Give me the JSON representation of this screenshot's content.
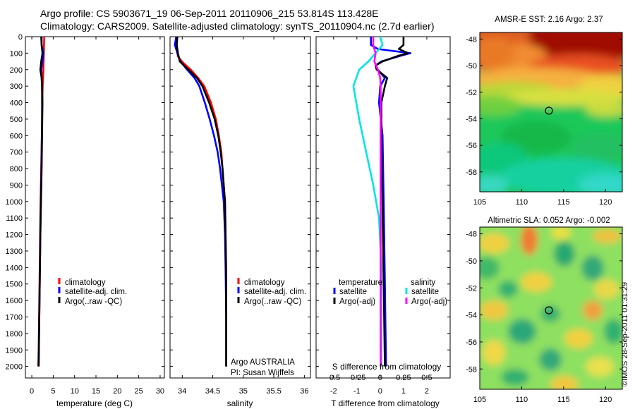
{
  "header": {
    "line1": "Argo profile: CS 5903671_19 06-Sep-2011 20110906_215 53.814S 113.428E",
    "line2": "Climatology: CARS2009. Satellite-adjusted climatology: synTS_20110904.nc (2.7d earlier)"
  },
  "colors": {
    "climatology": "#ff0000",
    "satellite": "#0000ff",
    "argo": "#000000",
    "salinity_satellite": "#00e5e5",
    "salinity_argo": "#ff00ff"
  },
  "chart_data": [
    {
      "type": "line",
      "xlabel": "temperature (deg C)",
      "ylabel": "",
      "xlim": [
        -1.5,
        31
      ],
      "ylim": [
        2070,
        0
      ],
      "xticks": [
        0,
        5,
        10,
        15,
        20,
        25,
        30
      ],
      "yticks": [
        0,
        100,
        200,
        300,
        400,
        500,
        600,
        700,
        800,
        900,
        1000,
        1100,
        1200,
        1300,
        1400,
        1500,
        1600,
        1700,
        1800,
        1900,
        2000
      ],
      "legend": [
        "climatology",
        "satellite-adj. clim.",
        "Argo(..raw -QC)"
      ],
      "series": [
        {
          "name": "climatology",
          "color": "#ff0000",
          "points": [
            [
              2.9,
              0
            ],
            [
              2.8,
              100
            ],
            [
              2.7,
              200
            ],
            [
              2.55,
              300
            ],
            [
              2.45,
              400
            ],
            [
              2.35,
              600
            ],
            [
              2.2,
              800
            ],
            [
              2.05,
              1000
            ],
            [
              1.9,
              1300
            ],
            [
              1.75,
              1600
            ],
            [
              1.6,
              1900
            ],
            [
              1.5,
              2000
            ]
          ]
        },
        {
          "name": "satellite-adj. clim.",
          "color": "#0000ff",
          "points": [
            [
              2.3,
              0
            ],
            [
              2.3,
              50
            ],
            [
              2.7,
              100
            ],
            [
              2.5,
              150
            ],
            [
              2.2,
              200
            ],
            [
              2.4,
              300
            ],
            [
              2.4,
              500
            ],
            [
              2.3,
              700
            ],
            [
              2.2,
              900
            ],
            [
              2.05,
              1100
            ],
            [
              1.9,
              1400
            ],
            [
              1.75,
              1700
            ],
            [
              1.6,
              2000
            ]
          ]
        },
        {
          "name": "Argo(..raw -QC)",
          "color": "#000000",
          "points": [
            [
              2.2,
              0
            ],
            [
              2.3,
              50
            ],
            [
              2.5,
              100
            ],
            [
              2.2,
              150
            ],
            [
              2.0,
              200
            ],
            [
              2.3,
              250
            ],
            [
              2.4,
              300
            ],
            [
              2.5,
              400
            ],
            [
              2.4,
              600
            ],
            [
              2.3,
              800
            ],
            [
              2.15,
              1000
            ],
            [
              2.0,
              1200
            ],
            [
              1.85,
              1500
            ],
            [
              1.7,
              1800
            ],
            [
              1.6,
              2000
            ]
          ]
        }
      ]
    },
    {
      "type": "line",
      "xlabel": "salinity",
      "xlim": [
        33.8,
        36.1
      ],
      "ylim": [
        2070,
        0
      ],
      "xticks": [
        34,
        34.5,
        35,
        35.5,
        36
      ],
      "legend": [
        "climatology",
        "satellite-adj. clim.",
        "Argo(..raw -QC)"
      ],
      "annotations": [
        "Argo AUSTRALIA",
        "PI: Susan Wijffels"
      ],
      "series": [
        {
          "name": "climatology",
          "color": "#ff0000",
          "points": [
            [
              33.9,
              0
            ],
            [
              33.91,
              60
            ],
            [
              33.93,
              120
            ],
            [
              34.02,
              160
            ],
            [
              34.14,
              200
            ],
            [
              34.26,
              250
            ],
            [
              34.36,
              300
            ],
            [
              34.47,
              400
            ],
            [
              34.55,
              500
            ],
            [
              34.6,
              600
            ],
            [
              34.64,
              700
            ],
            [
              34.66,
              800
            ],
            [
              34.68,
              900
            ],
            [
              34.7,
              1000
            ],
            [
              34.71,
              1200
            ],
            [
              34.72,
              1400
            ],
            [
              34.72,
              1600
            ],
            [
              34.72,
              2000
            ]
          ]
        },
        {
          "name": "satellite-adj. clim.",
          "color": "#0000ff",
          "points": [
            [
              33.9,
              0
            ],
            [
              33.88,
              50
            ],
            [
              33.92,
              100
            ],
            [
              33.97,
              150
            ],
            [
              34.08,
              200
            ],
            [
              34.2,
              250
            ],
            [
              34.28,
              300
            ],
            [
              34.37,
              400
            ],
            [
              34.45,
              500
            ],
            [
              34.52,
              600
            ],
            [
              34.58,
              700
            ],
            [
              34.62,
              800
            ],
            [
              34.65,
              900
            ],
            [
              34.68,
              1000
            ],
            [
              34.7,
              1200
            ],
            [
              34.71,
              1400
            ],
            [
              34.72,
              1700
            ],
            [
              34.72,
              2000
            ]
          ]
        },
        {
          "name": "Argo(..raw -QC)",
          "color": "#000000",
          "points": [
            [
              33.92,
              0
            ],
            [
              33.91,
              50
            ],
            [
              33.93,
              100
            ],
            [
              33.96,
              150
            ],
            [
              34.1,
              200
            ],
            [
              34.24,
              250
            ],
            [
              34.33,
              300
            ],
            [
              34.44,
              400
            ],
            [
              34.53,
              500
            ],
            [
              34.59,
              600
            ],
            [
              34.63,
              700
            ],
            [
              34.66,
              800
            ],
            [
              34.68,
              900
            ],
            [
              34.7,
              1000
            ],
            [
              34.71,
              1200
            ],
            [
              34.72,
              1500
            ],
            [
              34.72,
              1800
            ],
            [
              34.72,
              2000
            ]
          ]
        }
      ]
    },
    {
      "type": "line",
      "xlabel": "T difference from climatology",
      "xlabel_secondary": "S difference from climatology",
      "xlim": [
        -2.75,
        3
      ],
      "ylim": [
        2070,
        0
      ],
      "xticks": [
        -2,
        -1,
        0,
        1,
        2
      ],
      "secondary_xticks": [
        "-0.5",
        "-0.25",
        "0",
        "0.25",
        "0.5"
      ],
      "secondary_xtick_positions": [
        -2,
        -1,
        0,
        1,
        2
      ],
      "legend_titles": [
        "temperature",
        "salinity"
      ],
      "legend": [
        "satellite",
        "Argo(-adj)",
        "satellite",
        "Argo(-adj)"
      ],
      "series": [
        {
          "name": "temperature satellite",
          "color": "#0000ff",
          "points": [
            [
              -0.4,
              0
            ],
            [
              -0.4,
              50
            ],
            [
              -0.1,
              75
            ],
            [
              1.3,
              100
            ],
            [
              0.9,
              115
            ],
            [
              0.05,
              150
            ],
            [
              -0.2,
              175
            ],
            [
              -0.1,
              200
            ],
            [
              0.2,
              250
            ],
            [
              0,
              300
            ],
            [
              -0.05,
              400
            ],
            [
              0.1,
              600
            ],
            [
              0.15,
              1000
            ],
            [
              0.2,
              1500
            ],
            [
              0.25,
              2000
            ]
          ]
        },
        {
          "name": "temperature Argo(-adj)",
          "color": "#000000",
          "points": [
            [
              1.0,
              0
            ],
            [
              1.0,
              50
            ],
            [
              0.8,
              75
            ],
            [
              1.2,
              100
            ],
            [
              0.8,
              115
            ],
            [
              0.1,
              150
            ],
            [
              -0.2,
              175
            ],
            [
              -0.15,
              200
            ],
            [
              0.3,
              250
            ],
            [
              0.2,
              300
            ],
            [
              0.05,
              400
            ],
            [
              0.05,
              600
            ],
            [
              0.1,
              1000
            ],
            [
              0.15,
              1500
            ],
            [
              0.2,
              2000
            ]
          ]
        },
        {
          "name": "salinity satellite",
          "color": "#00e5e5",
          "points": [
            [
              0,
              0
            ],
            [
              0.1,
              50
            ],
            [
              -0.2,
              100
            ],
            [
              -0.5,
              150
            ],
            [
              -0.9,
              200
            ],
            [
              -1.15,
              300
            ],
            [
              -0.9,
              500
            ],
            [
              -0.6,
              700
            ],
            [
              -0.3,
              900
            ],
            [
              -0.05,
              1100
            ],
            [
              0.05,
              1400
            ],
            [
              0.05,
              2000
            ]
          ]
        },
        {
          "name": "salinity Argo(-adj)",
          "color": "#ff00ff",
          "points": [
            [
              -0.3,
              0
            ],
            [
              -0.3,
              50
            ],
            [
              -0.25,
              75
            ],
            [
              -0.2,
              100
            ],
            [
              -0.25,
              150
            ],
            [
              -0.1,
              200
            ],
            [
              0,
              250
            ],
            [
              0.02,
              300
            ],
            [
              0.02,
              500
            ],
            [
              0.02,
              2000
            ]
          ]
        }
      ]
    },
    {
      "type": "heatmap",
      "title": "AMSR-E SST: 2.16 Argo: 2.37",
      "xlim": [
        105,
        122
      ],
      "ylim": [
        -59.5,
        -47.5
      ],
      "xticks": [
        105,
        110,
        115,
        120
      ],
      "yticks": [
        -48,
        -50,
        -52,
        -54,
        -56,
        -58
      ],
      "marker": [
        113.428,
        -53.814
      ]
    },
    {
      "type": "heatmap",
      "title": "Altimetric SLA: 0.052 Argo: -0.002",
      "xlim": [
        105,
        122
      ],
      "ylim": [
        -59.5,
        -47.5
      ],
      "xticks": [
        105,
        110,
        115,
        120
      ],
      "yticks": [
        -48,
        -50,
        -52,
        -54,
        -56,
        -58
      ],
      "marker": [
        113.428,
        -53.814
      ]
    }
  ],
  "footer": {
    "stamp": "©IMOS 28-Sep-2011 01:31:29"
  }
}
